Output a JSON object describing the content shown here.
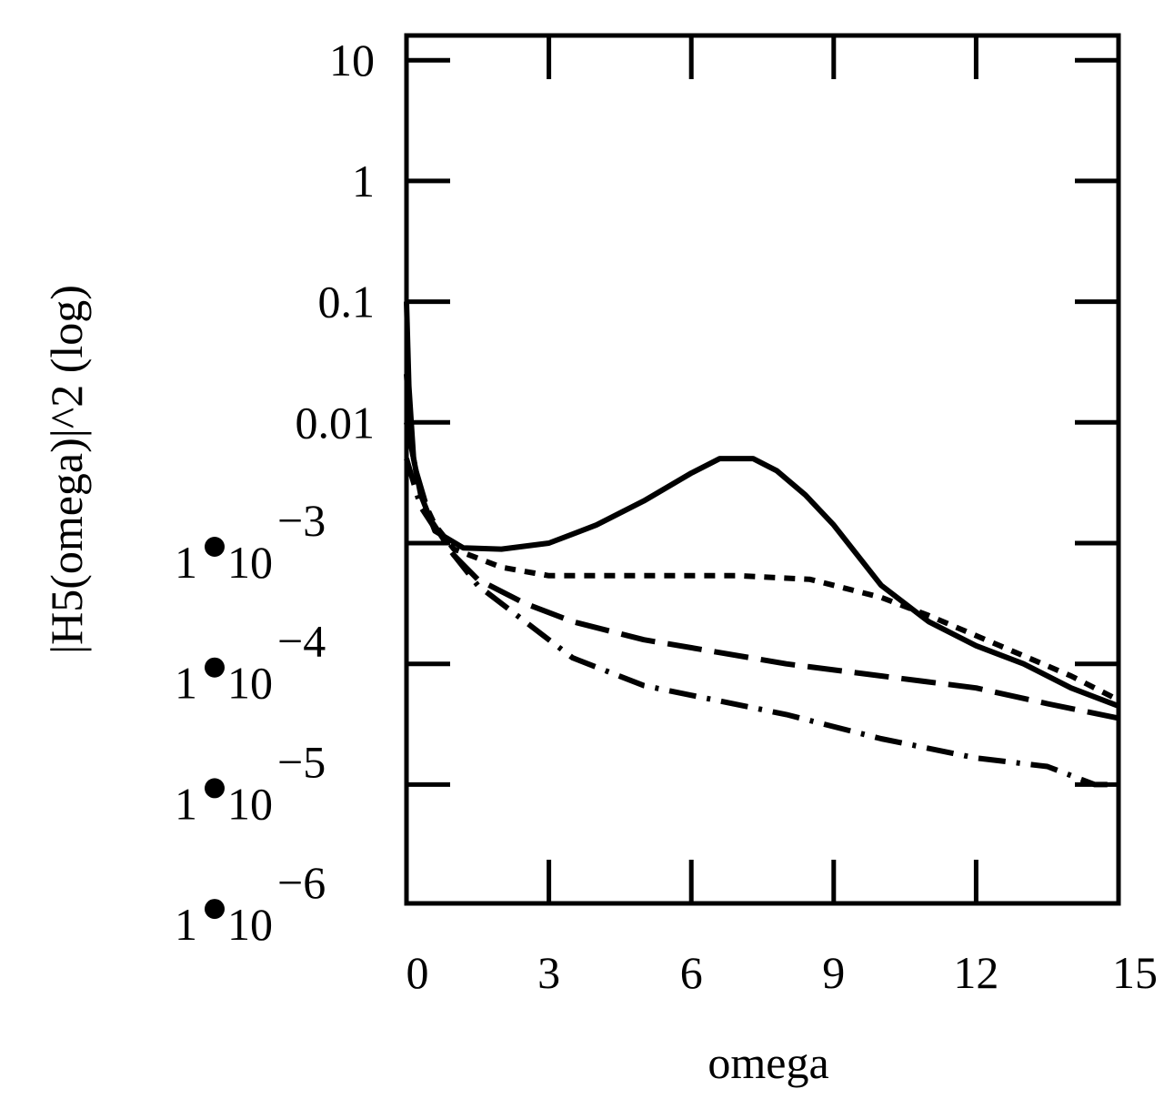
{
  "chart_data": {
    "type": "line",
    "title": "",
    "xlabel": "omega",
    "ylabel": "|H5(omega)|^2 (log)",
    "xlim": [
      0,
      15
    ],
    "ylim_log10": [
      -6,
      1.25
    ],
    "x_ticks": [
      {
        "value": 0,
        "label": "0"
      },
      {
        "value": 3,
        "label": "3"
      },
      {
        "value": 6,
        "label": "6"
      },
      {
        "value": 9,
        "label": "9"
      },
      {
        "value": 12,
        "label": "12"
      },
      {
        "value": 15,
        "label": "15"
      }
    ],
    "y_ticks_plain": [
      {
        "exp": 1,
        "label": "10"
      },
      {
        "exp": 0,
        "label": "1"
      },
      {
        "exp": -1,
        "label": "0.1"
      },
      {
        "exp": -2,
        "label": "0.01"
      }
    ],
    "y_ticks_sci": [
      {
        "exp": -3,
        "mantissa": "1",
        "base": "10",
        "power": "−3"
      },
      {
        "exp": -4,
        "mantissa": "1",
        "base": "10",
        "power": "−4"
      },
      {
        "exp": -5,
        "mantissa": "1",
        "base": "10",
        "power": "−5"
      },
      {
        "exp": -6,
        "mantissa": "1",
        "base": "10",
        "power": "−6"
      }
    ],
    "series": [
      {
        "name": "solid",
        "dash": "",
        "points": [
          [
            0,
            -1.0
          ],
          [
            0.05,
            -1.7
          ],
          [
            0.15,
            -2.3
          ],
          [
            0.3,
            -2.6
          ],
          [
            0.6,
            -2.9
          ],
          [
            1.2,
            -3.04
          ],
          [
            2.0,
            -3.05
          ],
          [
            3.0,
            -3.0
          ],
          [
            4.0,
            -2.85
          ],
          [
            5.0,
            -2.65
          ],
          [
            6.0,
            -2.42
          ],
          [
            6.6,
            -2.3
          ],
          [
            7.3,
            -2.3
          ],
          [
            7.8,
            -2.4
          ],
          [
            8.4,
            -2.6
          ],
          [
            9.0,
            -2.85
          ],
          [
            10.0,
            -3.35
          ],
          [
            11.0,
            -3.65
          ],
          [
            12.0,
            -3.85
          ],
          [
            13.0,
            -4.0
          ],
          [
            14.0,
            -4.2
          ],
          [
            15.0,
            -4.35
          ]
        ]
      },
      {
        "name": "short-dash",
        "dash": "12,10",
        "points": [
          [
            0,
            -1.6
          ],
          [
            0.1,
            -2.2
          ],
          [
            0.3,
            -2.6
          ],
          [
            0.6,
            -2.85
          ],
          [
            1.0,
            -3.05
          ],
          [
            2.0,
            -3.2
          ],
          [
            3.0,
            -3.27
          ],
          [
            5.0,
            -3.27
          ],
          [
            7.0,
            -3.27
          ],
          [
            8.5,
            -3.3
          ],
          [
            10.0,
            -3.45
          ],
          [
            11.0,
            -3.6
          ],
          [
            12.5,
            -3.85
          ],
          [
            14.0,
            -4.1
          ],
          [
            15.0,
            -4.3
          ]
        ]
      },
      {
        "name": "long-dash",
        "dash": "38,14",
        "points": [
          [
            0,
            -2.0
          ],
          [
            0.2,
            -2.4
          ],
          [
            0.5,
            -2.8
          ],
          [
            1.0,
            -3.1
          ],
          [
            1.5,
            -3.3
          ],
          [
            2.5,
            -3.5
          ],
          [
            3.5,
            -3.65
          ],
          [
            5.0,
            -3.8
          ],
          [
            6.5,
            -3.9
          ],
          [
            8.0,
            -4.0
          ],
          [
            10.0,
            -4.1
          ],
          [
            12.0,
            -4.2
          ],
          [
            13.5,
            -4.33
          ],
          [
            15.0,
            -4.45
          ]
        ]
      },
      {
        "name": "dash-dot",
        "dash": "30,12,4,12",
        "points": [
          [
            0,
            -2.3
          ],
          [
            0.3,
            -2.7
          ],
          [
            0.8,
            -3.0
          ],
          [
            1.5,
            -3.35
          ],
          [
            2.5,
            -3.65
          ],
          [
            3.5,
            -3.95
          ],
          [
            5.0,
            -4.18
          ],
          [
            6.5,
            -4.3
          ],
          [
            8.0,
            -4.42
          ],
          [
            10.0,
            -4.62
          ],
          [
            12.0,
            -4.78
          ],
          [
            13.5,
            -4.85
          ],
          [
            14.5,
            -5.0
          ],
          [
            15.0,
            -5.0
          ]
        ]
      }
    ]
  }
}
